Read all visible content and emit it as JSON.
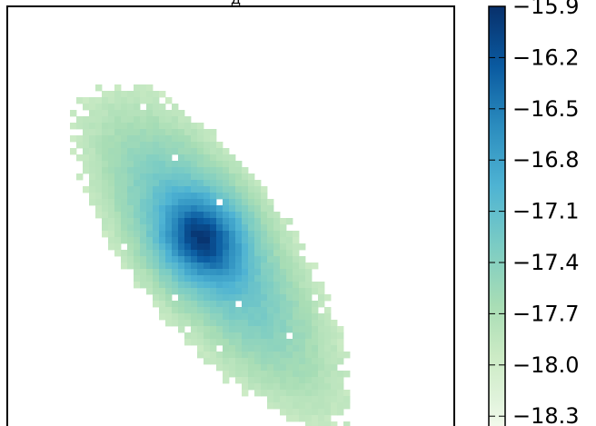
{
  "chart_data": {
    "type": "heatmap",
    "title_fragment": "д",
    "colormap": "GnBu",
    "colorbar": {
      "vmin": -18.4,
      "vmax": -15.9,
      "ticks": [
        -15.9,
        -16.2,
        -16.5,
        -16.8,
        -17.1,
        -17.4,
        -17.7,
        -18.0,
        -18.3
      ],
      "tick_labels": [
        "−15.9",
        "−16.2",
        "−16.5",
        "−16.8",
        "−17.1",
        "−17.4",
        "−17.7",
        "−18.0",
        "−18.3"
      ]
    },
    "peak_value": -15.9,
    "edge_value": -17.9,
    "grid": false
  },
  "colors": {
    "cmap_high": "#08306b",
    "cmap_mid": "#4aa3c9",
    "cmap_low_green": "#a8dcb5",
    "cmap_min": "#f7fcf0"
  }
}
